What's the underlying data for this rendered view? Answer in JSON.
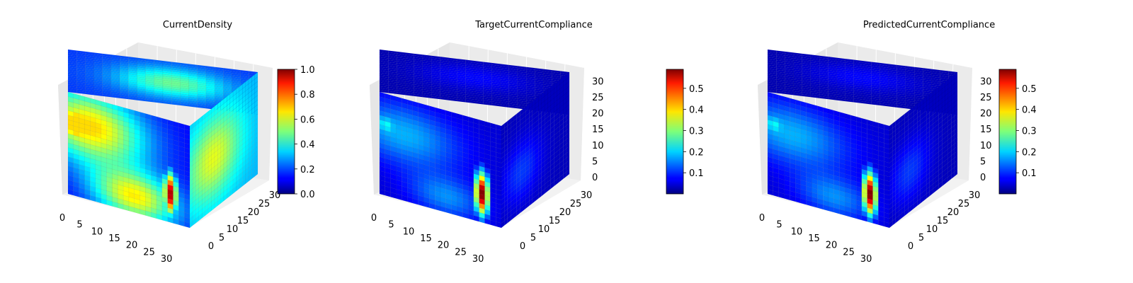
{
  "chart_data": [
    {
      "type": "3d-voxel",
      "title": "CurrentDensity",
      "colormap": "jet",
      "grid": true,
      "x_ticks": [
        "0",
        "5",
        "10",
        "15",
        "20",
        "25",
        "30"
      ],
      "y_ticks": [
        "0",
        "5",
        "10",
        "15",
        "20",
        "25",
        "30"
      ],
      "z_ticks": [],
      "colorbar": {
        "range": [
          0.0,
          1.0
        ],
        "ticks": [
          "0.0",
          "0.2",
          "0.4",
          "0.6",
          "0.8",
          "1.0"
        ],
        "tick_values": [
          0.0,
          0.2,
          0.4,
          0.6,
          0.8,
          1.0
        ],
        "placement": "right-overlapping"
      }
    },
    {
      "type": "3d-voxel",
      "title": "TargetCurrentCompliance",
      "colormap": "jet",
      "grid": true,
      "x_ticks": [
        "0",
        "5",
        "10",
        "15",
        "20",
        "25",
        "30"
      ],
      "y_ticks": [
        "0",
        "5",
        "10",
        "15",
        "20",
        "25",
        "30"
      ],
      "z_ticks": [
        "0",
        "5",
        "10",
        "15",
        "20",
        "25",
        "30"
      ],
      "colorbar": {
        "range": [
          0.0,
          0.59
        ],
        "ticks": [
          "0.1",
          "0.2",
          "0.3",
          "0.4",
          "0.5"
        ],
        "tick_values": [
          0.1,
          0.2,
          0.3,
          0.4,
          0.5
        ],
        "placement": "right"
      }
    },
    {
      "type": "3d-voxel",
      "title": "PredictedCurrentCompliance",
      "colormap": "jet",
      "grid": true,
      "x_ticks": [
        "0",
        "5",
        "10",
        "15",
        "20",
        "25",
        "30"
      ],
      "y_ticks": [
        "0",
        "5",
        "10",
        "15",
        "20",
        "25",
        "30"
      ],
      "z_ticks": [
        "0",
        "5",
        "10",
        "15",
        "20",
        "25",
        "30"
      ],
      "colorbar": {
        "range": [
          0.0,
          0.59
        ],
        "ticks": [
          "0.1",
          "0.2",
          "0.3",
          "0.4",
          "0.5"
        ],
        "tick_values": [
          0.1,
          0.2,
          0.3,
          0.4,
          0.5
        ],
        "placement": "right"
      }
    }
  ]
}
